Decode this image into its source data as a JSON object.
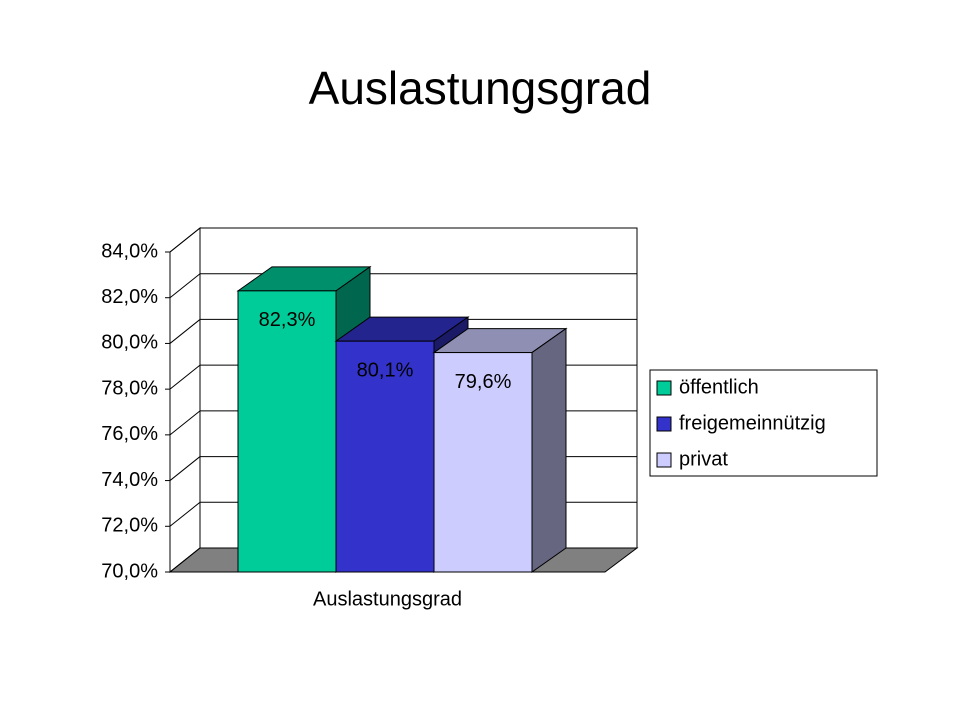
{
  "chart_data": {
    "type": "bar3d",
    "title": "Auslastungsgrad",
    "categories": [
      "Auslastungsgrad"
    ],
    "series": [
      {
        "name": "öffentlich",
        "color": "#00cc99",
        "values": [
          82.3
        ],
        "value_labels": [
          "82,3%"
        ]
      },
      {
        "name": "freigemeinnützig",
        "color": "#3333cc",
        "values": [
          80.1
        ],
        "value_labels": [
          "80,1%"
        ]
      },
      {
        "name": "privat",
        "color": "#ccccff",
        "values": [
          79.6
        ],
        "value_labels": [
          "79,6%"
        ]
      }
    ],
    "ylim": [
      70,
      84
    ],
    "yticks": [
      {
        "value": 70,
        "label": "70,0%"
      },
      {
        "value": 72,
        "label": "72,0%"
      },
      {
        "value": 74,
        "label": "74,0%"
      },
      {
        "value": 76,
        "label": "76,0%"
      },
      {
        "value": 78,
        "label": "78,0%"
      },
      {
        "value": 80,
        "label": "80,0%"
      },
      {
        "value": 82,
        "label": "82,0%"
      },
      {
        "value": 84,
        "label": "84,0%"
      }
    ],
    "grid": true,
    "legend": "right"
  }
}
